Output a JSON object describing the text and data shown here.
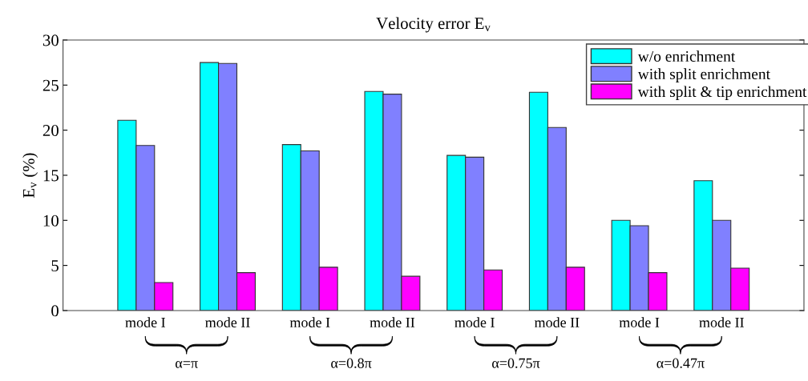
{
  "chart_data": {
    "type": "bar",
    "title": "Velocity error E$_{v}$",
    "ylabel": "E$_{v}$ (%)",
    "categories": [
      "mode I",
      "mode II",
      "mode I",
      "mode II",
      "mode I",
      "mode II",
      "mode I",
      "mode II"
    ],
    "series": [
      {
        "name": "w/o enrichment",
        "color": "#00ffff",
        "values": [
          21.1,
          27.5,
          18.4,
          24.3,
          17.2,
          24.2,
          10.0,
          14.4
        ]
      },
      {
        "name": "with split enrichment",
        "color": "#8080ff",
        "values": [
          18.3,
          27.4,
          17.7,
          24.0,
          17.0,
          20.3,
          9.4,
          10.0
        ]
      },
      {
        "name": "with split & tip enrichment",
        "color": "#ff00ff",
        "values": [
          3.1,
          4.2,
          4.8,
          3.8,
          4.5,
          4.8,
          4.2,
          4.7
        ]
      }
    ],
    "ylim": [
      0,
      30
    ],
    "yticks": [
      0,
      5,
      10,
      15,
      20,
      25,
      30
    ],
    "grid": false,
    "legend": "top right",
    "annotations": [
      "α=π",
      "α=0.8π",
      "α=0.75π",
      "α=0.47π"
    ]
  }
}
